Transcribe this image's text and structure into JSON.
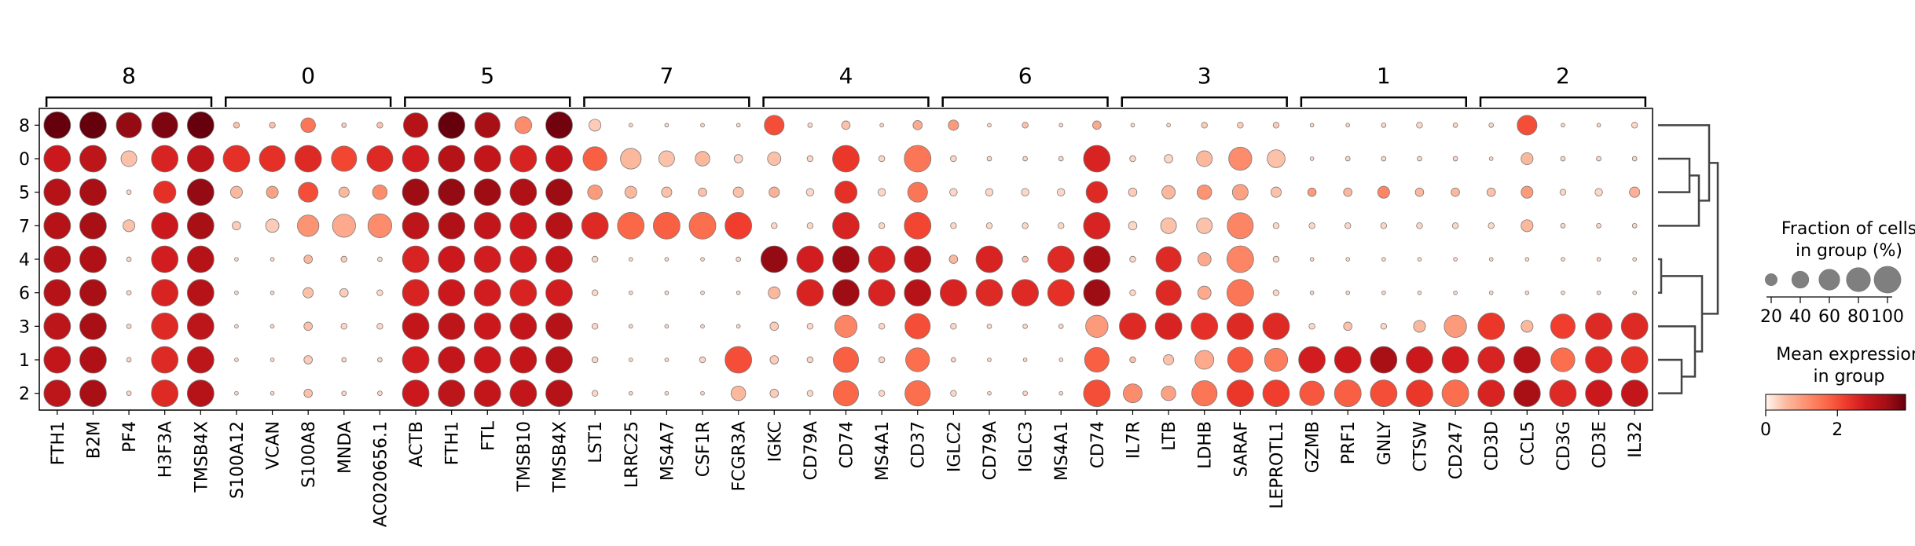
{
  "chart_data": {
    "type": "dotplot",
    "x_groups": [
      {
        "label": "8",
        "genes": [
          "FTH1",
          "B2M",
          "PF4",
          "H3F3A",
          "TMSB4X"
        ]
      },
      {
        "label": "0",
        "genes": [
          "S100A12",
          "VCAN",
          "S100A8",
          "MNDA",
          "AC020656.1"
        ]
      },
      {
        "label": "5",
        "genes": [
          "ACTB",
          "FTH1",
          "FTL",
          "TMSB10",
          "TMSB4X"
        ]
      },
      {
        "label": "7",
        "genes": [
          "LST1",
          "LRRC25",
          "MS4A7",
          "CSF1R",
          "FCGR3A"
        ]
      },
      {
        "label": "4",
        "genes": [
          "IGKC",
          "CD79A",
          "CD74",
          "MS4A1",
          "CD37"
        ]
      },
      {
        "label": "6",
        "genes": [
          "IGLC2",
          "CD79A",
          "IGLC3",
          "MS4A1",
          "CD74"
        ]
      },
      {
        "label": "3",
        "genes": [
          "IL7R",
          "LTB",
          "LDHB",
          "SARAF",
          "LEPROTL1"
        ]
      },
      {
        "label": "1",
        "genes": [
          "GZMB",
          "PRF1",
          "GNLY",
          "CTSW",
          "CD247"
        ]
      },
      {
        "label": "2",
        "genes": [
          "CD3D",
          "CCL5",
          "CD3G",
          "CD3E",
          "IL32"
        ]
      }
    ],
    "y_categories": [
      "8",
      "0",
      "5",
      "7",
      "4",
      "6",
      "3",
      "1",
      "2"
    ],
    "fraction": [
      [
        100,
        100,
        90,
        95,
        100,
        5,
        5,
        30,
        3,
        5,
        85,
        100,
        90,
        40,
        100,
        20,
        2,
        2,
        2,
        2,
        55,
        3,
        10,
        2,
        12,
        15,
        2,
        5,
        2,
        10,
        2,
        2,
        5,
        5,
        5,
        2,
        2,
        3,
        5,
        3,
        3,
        55,
        2,
        2,
        5
      ],
      [
        100,
        100,
        35,
        100,
        100,
        100,
        95,
        100,
        90,
        95,
        100,
        100,
        100,
        100,
        100,
        80,
        60,
        35,
        30,
        10,
        25,
        5,
        100,
        5,
        100,
        5,
        3,
        3,
        3,
        100,
        5,
        10,
        35,
        75,
        45,
        2,
        3,
        3,
        3,
        3,
        2,
        20,
        3,
        3,
        3
      ],
      [
        100,
        100,
        3,
        70,
        100,
        20,
        20,
        55,
        15,
        30,
        100,
        100,
        100,
        100,
        100,
        30,
        20,
        15,
        10,
        15,
        15,
        8,
        70,
        8,
        55,
        8,
        8,
        8,
        8,
        65,
        10,
        25,
        30,
        35,
        15,
        10,
        10,
        20,
        10,
        10,
        10,
        20,
        5,
        8,
        15
      ],
      [
        100,
        100,
        20,
        100,
        100,
        10,
        25,
        65,
        75,
        80,
        100,
        100,
        100,
        100,
        100,
        100,
        100,
        100,
        100,
        100,
        5,
        5,
        100,
        5,
        100,
        5,
        5,
        5,
        5,
        100,
        10,
        35,
        35,
        95,
        5,
        5,
        5,
        5,
        5,
        5,
        5,
        20,
        3,
        3,
        3
      ],
      [
        100,
        100,
        3,
        100,
        100,
        2,
        2,
        10,
        5,
        3,
        100,
        100,
        100,
        100,
        100,
        5,
        2,
        2,
        2,
        3,
        100,
        100,
        100,
        100,
        100,
        10,
        100,
        5,
        100,
        100,
        5,
        90,
        25,
        100,
        5,
        2,
        2,
        2,
        2,
        2,
        2,
        2,
        2,
        2,
        2
      ],
      [
        100,
        100,
        3,
        100,
        100,
        2,
        2,
        15,
        10,
        5,
        100,
        100,
        100,
        100,
        100,
        5,
        2,
        2,
        2,
        2,
        20,
        100,
        100,
        100,
        100,
        100,
        100,
        100,
        100,
        100,
        5,
        90,
        25,
        100,
        5,
        2,
        2,
        2,
        2,
        2,
        2,
        2,
        2,
        2,
        2
      ],
      [
        100,
        100,
        3,
        100,
        100,
        2,
        2,
        10,
        5,
        5,
        100,
        100,
        100,
        100,
        100,
        5,
        2,
        2,
        2,
        2,
        10,
        5,
        70,
        5,
        90,
        5,
        3,
        3,
        3,
        70,
        100,
        100,
        100,
        100,
        100,
        5,
        10,
        5,
        20,
        70,
        100,
        20,
        85,
        100,
        100
      ],
      [
        100,
        100,
        3,
        100,
        100,
        2,
        2,
        10,
        3,
        3,
        100,
        100,
        100,
        100,
        100,
        5,
        2,
        2,
        5,
        100,
        10,
        5,
        90,
        5,
        80,
        3,
        2,
        2,
        2,
        85,
        5,
        15,
        50,
        90,
        75,
        100,
        100,
        100,
        100,
        100,
        100,
        100,
        80,
        100,
        100
      ],
      [
        100,
        100,
        3,
        100,
        100,
        2,
        2,
        10,
        3,
        3,
        100,
        100,
        100,
        100,
        100,
        5,
        2,
        2,
        2,
        30,
        10,
        5,
        90,
        5,
        90,
        5,
        2,
        3,
        2,
        100,
        50,
        30,
        90,
        100,
        100,
        85,
        100,
        100,
        100,
        100,
        100,
        100,
        100,
        100,
        100
      ]
    ],
    "mean_expression": [
      [
        3.9,
        3.9,
        3.5,
        3.7,
        3.9,
        0.5,
        0.5,
        1.5,
        0.4,
        0.5,
        3.1,
        3.9,
        3.3,
        1.2,
        3.8,
        0.4,
        0.3,
        0.3,
        0.3,
        0.3,
        2.0,
        0.3,
        0.5,
        0.3,
        0.8,
        1.0,
        0.3,
        0.5,
        0.3,
        0.8,
        0.3,
        0.3,
        0.4,
        0.4,
        0.4,
        0.3,
        0.3,
        0.3,
        0.3,
        0.3,
        0.3,
        2.0,
        0.3,
        0.3,
        0.3
      ],
      [
        2.8,
        3.0,
        0.5,
        2.6,
        3.0,
        2.4,
        2.4,
        2.5,
        2.1,
        2.5,
        2.7,
        3.1,
        2.9,
        2.6,
        2.9,
        1.8,
        0.6,
        0.5,
        0.6,
        0.3,
        0.5,
        0.3,
        2.3,
        0.3,
        1.5,
        0.3,
        0.3,
        0.3,
        0.3,
        2.6,
        0.3,
        0.3,
        0.6,
        1.2,
        0.5,
        0.3,
        0.3,
        0.3,
        0.3,
        0.3,
        0.3,
        0.6,
        0.3,
        0.3,
        0.3
      ],
      [
        3.1,
        3.3,
        0.3,
        2.4,
        3.5,
        0.6,
        0.9,
        2.0,
        0.6,
        1.2,
        3.4,
        3.5,
        3.4,
        3.2,
        3.4,
        1.0,
        0.6,
        0.5,
        0.5,
        0.5,
        0.7,
        0.3,
        2.4,
        0.3,
        1.5,
        0.3,
        0.3,
        0.3,
        0.3,
        2.5,
        0.4,
        0.6,
        1.1,
        0.9,
        0.5,
        1.0,
        0.6,
        1.3,
        0.6,
        0.6,
        0.5,
        1.0,
        0.3,
        0.3,
        0.7
      ],
      [
        3.1,
        3.3,
        0.5,
        2.8,
        3.3,
        0.4,
        0.4,
        1.1,
        0.8,
        1.2,
        3.0,
        3.2,
        2.9,
        2.8,
        3.1,
        2.5,
        1.7,
        1.8,
        1.6,
        2.2,
        0.3,
        0.3,
        2.6,
        0.3,
        2.1,
        0.3,
        0.3,
        0.3,
        0.3,
        2.6,
        0.3,
        0.5,
        0.5,
        1.3,
        0.3,
        0.3,
        0.3,
        0.3,
        0.3,
        0.3,
        0.3,
        0.6,
        0.3,
        0.3,
        0.3
      ],
      [
        3.1,
        3.2,
        0.3,
        2.7,
        3.1,
        0.3,
        0.3,
        0.6,
        0.4,
        0.3,
        2.6,
        2.8,
        2.7,
        2.7,
        2.9,
        0.3,
        0.3,
        0.3,
        0.3,
        0.3,
        3.5,
        2.7,
        3.4,
        2.6,
        3.0,
        0.6,
        2.6,
        0.5,
        2.5,
        3.3,
        0.3,
        2.5,
        0.8,
        1.3,
        0.3,
        0.3,
        0.3,
        0.3,
        0.3,
        0.3,
        0.3,
        0.3,
        0.3,
        0.3,
        0.3
      ],
      [
        3.1,
        3.3,
        0.3,
        2.6,
        3.1,
        0.3,
        0.3,
        0.5,
        0.4,
        0.3,
        2.6,
        2.8,
        2.7,
        2.6,
        2.7,
        0.3,
        0.3,
        0.3,
        0.3,
        0.3,
        0.6,
        2.6,
        3.4,
        2.6,
        3.1,
        2.6,
        2.5,
        2.5,
        2.4,
        3.4,
        0.3,
        2.5,
        0.8,
        1.5,
        0.3,
        0.3,
        0.3,
        0.3,
        0.3,
        0.3,
        0.3,
        0.3,
        0.3,
        0.3,
        0.3
      ],
      [
        3.0,
        3.3,
        0.3,
        2.5,
        3.0,
        0.3,
        0.3,
        0.5,
        0.3,
        0.3,
        2.9,
        3.0,
        2.8,
        2.9,
        3.1,
        0.3,
        0.3,
        0.3,
        0.3,
        0.3,
        0.4,
        0.3,
        1.3,
        0.3,
        2.0,
        0.3,
        0.3,
        0.3,
        0.3,
        1.0,
        2.5,
        2.6,
        2.4,
        2.5,
        2.5,
        0.3,
        0.5,
        0.3,
        0.6,
        1.0,
        2.3,
        0.6,
        2.2,
        2.5,
        2.5
      ],
      [
        2.9,
        3.2,
        0.3,
        2.5,
        3.0,
        0.3,
        0.3,
        0.4,
        0.3,
        0.3,
        2.7,
        2.9,
        2.8,
        2.9,
        3.1,
        0.3,
        0.3,
        0.3,
        0.3,
        2.0,
        0.4,
        0.3,
        1.8,
        0.3,
        1.6,
        0.3,
        0.3,
        0.3,
        0.3,
        1.8,
        0.5,
        0.5,
        0.8,
        1.9,
        1.4,
        2.7,
        2.8,
        3.3,
        2.8,
        2.7,
        2.6,
        3.1,
        1.6,
        2.5,
        2.4
      ],
      [
        3.0,
        3.3,
        0.3,
        2.5,
        3.1,
        0.3,
        0.3,
        0.5,
        0.3,
        0.3,
        2.8,
        3.0,
        2.9,
        2.9,
        3.1,
        0.3,
        0.3,
        0.3,
        0.3,
        0.6,
        0.4,
        0.3,
        1.7,
        0.3,
        1.6,
        0.3,
        0.3,
        0.3,
        0.3,
        2.0,
        1.2,
        0.9,
        1.5,
        2.3,
        2.2,
        1.9,
        1.8,
        2.0,
        2.3,
        1.6,
        2.6,
        3.3,
        2.5,
        2.8,
        2.9
      ]
    ],
    "size_legend": {
      "title_line1": "Fraction of cells",
      "title_line2": "in group (%)",
      "ticks": [
        "20",
        "40",
        "60",
        "80",
        "100"
      ]
    },
    "color_legend": {
      "title_line1": "Mean expression",
      "title_line2": "in group",
      "ticks": [
        "0",
        "2"
      ],
      "vmin": 0,
      "vmax": 3.9
    },
    "colors": {
      "dot_edge": "#7a7a7a",
      "bracket": "#000000",
      "dendrogram": "#444444",
      "legend_dot": "#7f7f7f",
      "colormap": [
        "#fff5f0",
        "#fcbba1",
        "#fc9272",
        "#fb6a4a",
        "#ef3b2c",
        "#cb181d",
        "#a50f15",
        "#67000d"
      ]
    },
    "dendrogram": true
  }
}
